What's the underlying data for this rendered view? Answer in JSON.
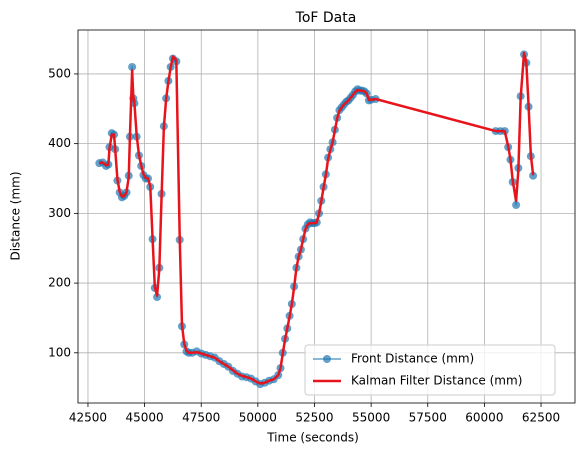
{
  "chart_data": {
    "type": "line",
    "title": "ToF Data",
    "x_label": "Time (seconds)",
    "y_label": "Distance (mm)",
    "x": [
      43000,
      43150,
      43300,
      43400,
      43450,
      43550,
      43650,
      43700,
      43800,
      43900,
      44000,
      44100,
      44200,
      44300,
      44350,
      44450,
      44500,
      44550,
      44650,
      44750,
      44850,
      44950,
      45050,
      45150,
      45250,
      45350,
      45450,
      45550,
      45650,
      45750,
      45850,
      45950,
      46050,
      46150,
      46250,
      46400,
      46550,
      46650,
      46750,
      46850,
      46950,
      47100,
      47300,
      47500,
      47700,
      47900,
      48100,
      48300,
      48500,
      48700,
      48900,
      49100,
      49300,
      49500,
      49700,
      49900,
      50100,
      50300,
      50500,
      50700,
      50900,
      51000,
      51100,
      51200,
      51300,
      51400,
      51500,
      51600,
      51700,
      51800,
      51900,
      52000,
      52100,
      52200,
      52300,
      52400,
      52500,
      52600,
      52700,
      52800,
      52900,
      53000,
      53100,
      53200,
      53300,
      53400,
      53500,
      53600,
      53700,
      53800,
      53900,
      54000,
      54100,
      54200,
      54300,
      54400,
      54500,
      54600,
      54700,
      54800,
      54900,
      55000,
      55200,
      60500,
      60700,
      60900,
      61050,
      61150,
      61250,
      61400,
      61500,
      61600,
      61750,
      61850,
      61950,
      62050,
      62150
    ],
    "series": [
      {
        "name": "Front Distance (mm)",
        "color": "#1f77b4",
        "marker": true,
        "values": [
          372,
          373,
          368,
          370,
          395,
          415,
          413,
          392,
          347,
          330,
          323,
          325,
          330,
          354,
          410,
          510,
          465,
          458,
          410,
          383,
          368,
          355,
          350,
          350,
          338,
          263,
          193,
          180,
          222,
          328,
          425,
          465,
          490,
          510,
          522,
          518,
          262,
          138,
          112,
          102,
          100,
          100,
          102,
          99,
          97,
          95,
          93,
          88,
          84,
          80,
          74,
          70,
          66,
          65,
          63,
          59,
          55,
          57,
          60,
          62,
          68,
          78,
          100,
          120,
          135,
          153,
          170,
          195,
          222,
          238,
          248,
          263,
          278,
          284,
          287,
          286,
          286,
          287,
          300,
          318,
          338,
          356,
          380,
          392,
          402,
          420,
          437,
          448,
          452,
          456,
          460,
          462,
          466,
          470,
          475,
          478,
          476,
          476,
          475,
          472,
          462,
          463,
          464,
          418,
          418,
          418,
          395,
          377,
          345,
          312,
          365,
          468,
          528,
          516,
          453,
          382,
          354
        ]
      },
      {
        "name": "Kalman Filter Distance (mm)",
        "color": "#e8141c",
        "marker": false,
        "values": [
          372,
          373,
          369,
          370,
          393,
          413,
          413,
          393,
          349,
          331,
          324,
          325,
          330,
          352,
          408,
          505,
          468,
          458,
          412,
          384,
          369,
          356,
          351,
          350,
          339,
          265,
          195,
          182,
          220,
          325,
          423,
          464,
          489,
          509,
          525,
          520,
          265,
          140,
          113,
          103,
          100,
          100,
          101,
          99,
          97,
          95,
          93,
          88,
          84,
          80,
          75,
          70,
          67,
          65,
          63,
          59,
          56,
          57,
          60,
          62,
          68,
          78,
          99,
          119,
          135,
          152,
          170,
          194,
          221,
          238,
          248,
          263,
          277,
          284,
          286,
          286,
          286,
          287,
          299,
          317,
          337,
          355,
          378,
          391,
          402,
          419,
          436,
          447,
          452,
          456,
          459,
          462,
          466,
          470,
          474,
          477,
          476,
          476,
          475,
          472,
          463,
          463,
          464,
          418,
          418,
          418,
          396,
          378,
          347,
          318,
          362,
          465,
          530,
          517,
          455,
          384,
          355
        ]
      }
    ],
    "xlim": [
      42060,
      64000
    ],
    "ylim": [
      28,
      563
    ],
    "xticks": [
      42500,
      45000,
      47500,
      50000,
      52500,
      55000,
      57500,
      60000,
      62500
    ],
    "yticks": [
      100,
      200,
      300,
      400,
      500
    ],
    "grid": true,
    "legend_loc": "lower right"
  }
}
